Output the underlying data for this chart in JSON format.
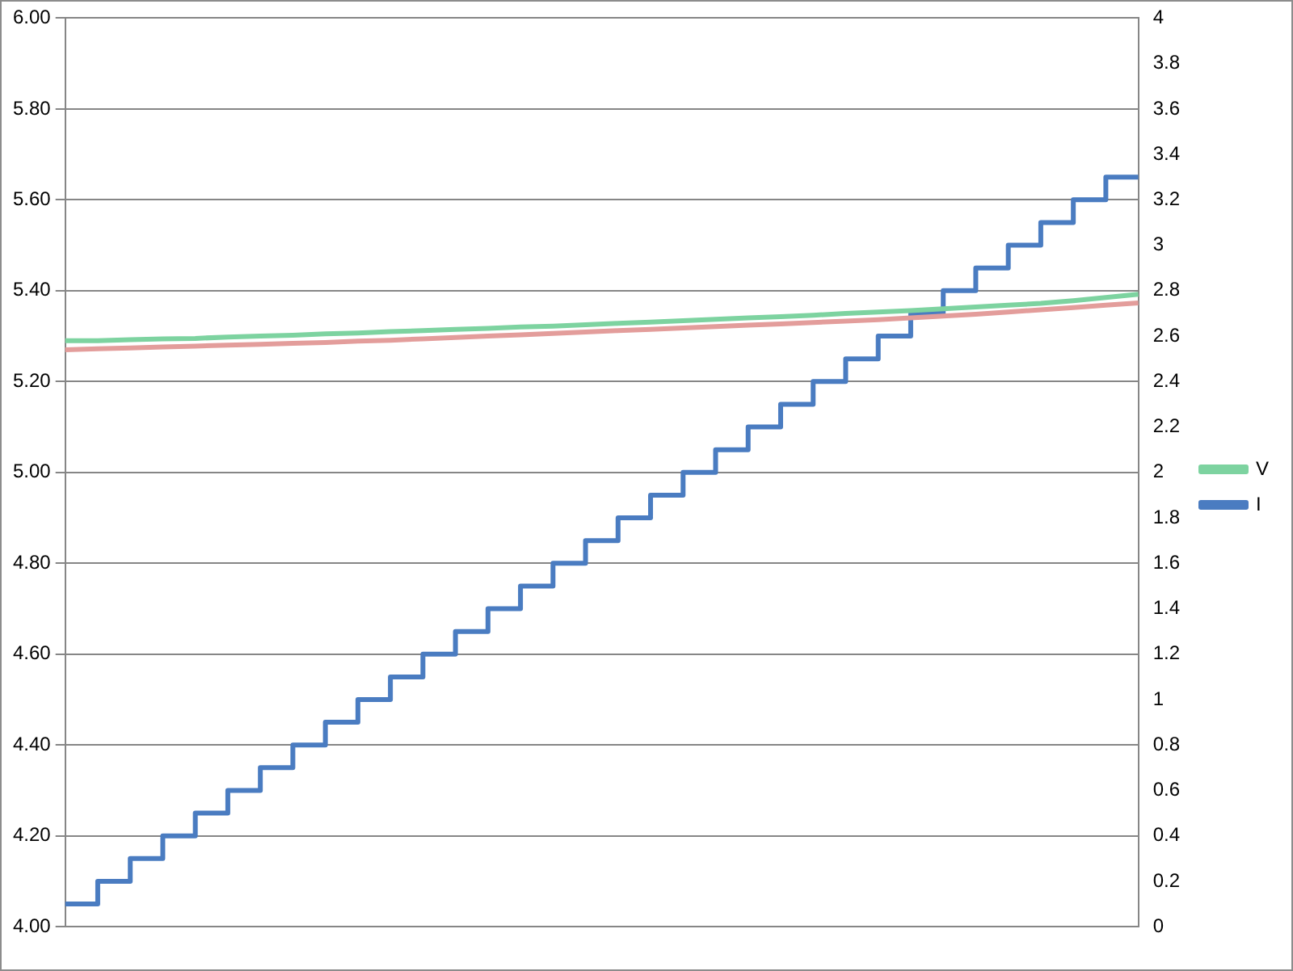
{
  "chart_data": {
    "type": "line",
    "categories": [
      null,
      null,
      null,
      null,
      null,
      null,
      null,
      null,
      null,
      null,
      null,
      null,
      null,
      null,
      null,
      null,
      null,
      null,
      null,
      null,
      null,
      null,
      null,
      null,
      null,
      null,
      null,
      null,
      null,
      null,
      null,
      null,
      null,
      null
    ],
    "series": [
      {
        "name": "V",
        "color": "#7dd3a0",
        "values": [
          5.29,
          5.29,
          5.292,
          5.294,
          5.295,
          5.298,
          5.3,
          5.302,
          5.305,
          5.307,
          5.31,
          5.312,
          5.315,
          5.317,
          5.32,
          5.322,
          5.325,
          5.328,
          5.331,
          5.334,
          5.337,
          5.34,
          5.343,
          5.346,
          5.35,
          5.353,
          5.356,
          5.36,
          5.364,
          5.368,
          5.372,
          5.378,
          5.385,
          5.392
        ]
      },
      {
        "color": "#e39d9b",
        "values": [
          5.27,
          5.272,
          5.274,
          5.276,
          5.278,
          5.28,
          5.282,
          5.284,
          5.286,
          5.289,
          5.291,
          5.294,
          5.297,
          5.3,
          5.303,
          5.306,
          5.309,
          5.312,
          5.315,
          5.318,
          5.321,
          5.324,
          5.327,
          5.33,
          5.333,
          5.336,
          5.34,
          5.344,
          5.348,
          5.353,
          5.358,
          5.363,
          5.368,
          5.373
        ]
      },
      {
        "name": "I",
        "type": "step",
        "axis": "y2",
        "color": "#4a7cc1",
        "values": [
          0.1,
          0.2,
          0.3,
          0.4,
          0.5,
          0.6,
          0.7,
          0.8,
          0.9,
          1.0,
          1.1,
          1.2,
          1.3,
          1.4,
          1.5,
          1.6,
          1.7,
          1.8,
          1.9,
          2.0,
          2.1,
          2.2,
          2.3,
          2.4,
          2.5,
          2.6,
          2.7,
          2.8,
          2.9,
          3.0,
          3.1,
          3.2,
          3.3,
          3.3
        ]
      }
    ],
    "ylim": [
      4,
      6
    ],
    "yticks": [
      {
        "value": 4,
        "label": "4.00"
      },
      {
        "value": 4.2,
        "label": "4.20"
      },
      {
        "value": 4.4,
        "label": "4.40"
      },
      {
        "value": 4.6,
        "label": "4.60"
      },
      {
        "value": 4.8,
        "label": "4.80"
      },
      {
        "value": 5,
        "label": "5.00"
      },
      {
        "value": 5.2,
        "label": "5.20"
      },
      {
        "value": 5.4,
        "label": "5.40"
      },
      {
        "value": 5.6,
        "label": "5.60"
      },
      {
        "value": 5.8,
        "label": "5.80"
      },
      {
        "value": 6,
        "label": "6.00"
      }
    ],
    "y2lim": [
      0,
      4
    ],
    "y2ticks": [
      0,
      0.2,
      0.4,
      0.6,
      0.8,
      1,
      1.2,
      1.4,
      1.6,
      1.8,
      2,
      2.2,
      2.4,
      2.6,
      2.8,
      3,
      3.2,
      3.4,
      3.6,
      3.8,
      4
    ],
    "grid": "y",
    "legend": "right",
    "marker": "none"
  }
}
